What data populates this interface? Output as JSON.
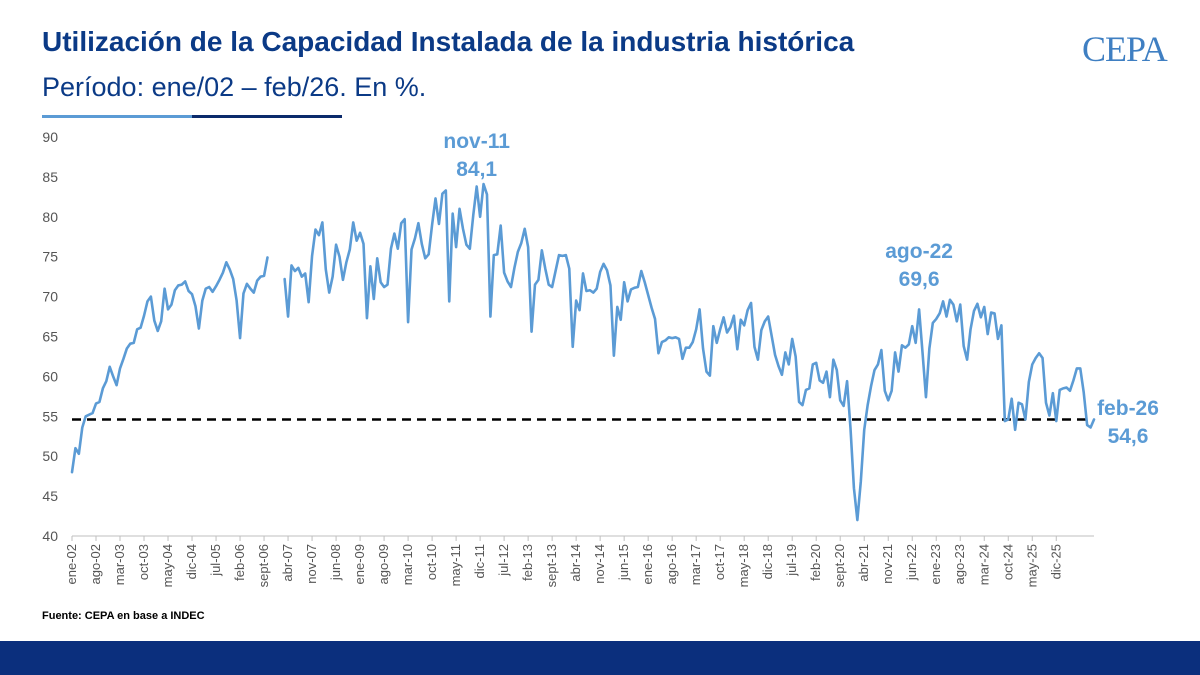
{
  "header": {
    "title": "Utilización de la Capacidad Instalada de la industria histórica",
    "subtitle": "Período: ene/02 – feb/26. En %.",
    "logo": "CEPA"
  },
  "footer": {
    "source": "Fuente: CEPA en base a INDEC"
  },
  "colors": {
    "line": "#5b9bd5",
    "title": "#0b3a86",
    "footer_bar": "#0b2f7d",
    "reference": "#000000"
  },
  "chart_data": {
    "type": "line",
    "x_start": "ene-02",
    "x_end": "feb-26",
    "frequency": "monthly",
    "ylim": [
      40,
      90
    ],
    "yticks": [
      40,
      45,
      50,
      55,
      60,
      65,
      70,
      75,
      80,
      85,
      90
    ],
    "xtick_labels": [
      "ene-02",
      "ago-02",
      "mar-03",
      "oct-03",
      "may-04",
      "dic-04",
      "jul-05",
      "feb-06",
      "sept-06",
      "abr-07",
      "nov-07",
      "jun-08",
      "ene-09",
      "ago-09",
      "mar-10",
      "oct-10",
      "may-11",
      "dic-11",
      "jul-12",
      "feb-13",
      "sept-13",
      "abr-14",
      "nov-14",
      "jun-15",
      "ene-16",
      "ago-16",
      "mar-17",
      "oct-17",
      "may-18",
      "dic-18",
      "jul-19",
      "feb-20",
      "sept-20",
      "abr-21",
      "nov-21",
      "jun-22",
      "ene-23",
      "ago-23",
      "mar-24",
      "oct-24",
      "may-25",
      "dic-25"
    ],
    "grid": false,
    "legend": "none",
    "reference_line": {
      "value": 54.6,
      "style": "dashed"
    },
    "annotations": [
      {
        "x": "nov-11",
        "label": "nov-11",
        "value": "84,1"
      },
      {
        "x": "ago-22",
        "label": "ago-22",
        "value": "69,6"
      },
      {
        "x": "feb-26",
        "label": "feb-26",
        "value": "54,6"
      }
    ],
    "series": [
      {
        "values": [
          48,
          51,
          50.3,
          53.6,
          55,
          55.2,
          55.4,
          56.6,
          56.8,
          58.5,
          59.4,
          61.2,
          60,
          58.9,
          61,
          62.2,
          63.5,
          64.1,
          64.2,
          65.9,
          66.1,
          67.6,
          69.4,
          70,
          67,
          65.7,
          66.9,
          71,
          68.4,
          69,
          70.8,
          71.4,
          71.5,
          71.9,
          70.7,
          70.3,
          68.8,
          66,
          69.5,
          71,
          71.2,
          70.6,
          71.3,
          72.1,
          73,
          74.3,
          73.4,
          72.2,
          69.5,
          64.8,
          70.4,
          71.6,
          71,
          70.5,
          72,
          72.5,
          72.6,
          74.9,
          null,
          null,
          null,
          null,
          72.2,
          67.5,
          73.9,
          73.2,
          73.6,
          72.5,
          72.9,
          69.3,
          75.1,
          78.4,
          77.7,
          79.3,
          73.4,
          70.5,
          72.5,
          76.5,
          75,
          72.1,
          74.3,
          75.9,
          79.3,
          77,
          78,
          76.6,
          67.3,
          73.8,
          69.7,
          74.8,
          71.8,
          71.2,
          71.5,
          76,
          77.9,
          76,
          79.2,
          79.7,
          66.8,
          75.9,
          77.3,
          79.2,
          76.6,
          74.8,
          75.3,
          79,
          82.3,
          79.1,
          82.9,
          83.3,
          69.4,
          80.4,
          76.2,
          81,
          78.5,
          76.5,
          76,
          80.2,
          83.8,
          80,
          84.1,
          82.8,
          67.5,
          75.2,
          75.3,
          78.9,
          73,
          71.9,
          71.2,
          73.6,
          75.6,
          76.7,
          78.5,
          76.2,
          65.6,
          71.5,
          72.1,
          75.8,
          73.5,
          71.5,
          71.2,
          73.2,
          75.2,
          75.1,
          75.2,
          73.5,
          63.7,
          69.5,
          68.3,
          72.9,
          70.7,
          70.8,
          70.5,
          71,
          73.1,
          74.1,
          73.3,
          71.4,
          62.6,
          68.7,
          67.1,
          71.8,
          69.4,
          70.9,
          71.1,
          71.2,
          73.2,
          71.8,
          70.2,
          68.6,
          67.2,
          62.9,
          64.3,
          64.5,
          64.9,
          64.8,
          64.9,
          64.7,
          62.2,
          63.6,
          63.6,
          64.3,
          65.9,
          68.4,
          63.5,
          60.6,
          60.1,
          66.3,
          64.2,
          65.9,
          67.4,
          65.5,
          66.2,
          67.6,
          63.4,
          67.1,
          66.4,
          68.3,
          69.2,
          63.7,
          62.1,
          65.8,
          66.9,
          67.5,
          65.1,
          62.7,
          61.3,
          60.2,
          63,
          61.5,
          64.7,
          62.5,
          56.8,
          56.4,
          58.3,
          58.5,
          61.5,
          61.7,
          59.5,
          59.2,
          60.6,
          57.4,
          62.1,
          60.8,
          57,
          56.3,
          59.4,
          53.5,
          46,
          42,
          46.8,
          53.3,
          56.4,
          58.8,
          60.8,
          61.5,
          63.3,
          58.2,
          57,
          58.2,
          63,
          60.6,
          63.9,
          63.6,
          64,
          66.3,
          64.2,
          68.4,
          63,
          57.4,
          63.5,
          66.7,
          67.2,
          67.9,
          69.4,
          67.5,
          69.6,
          69,
          66.9,
          69,
          63.8,
          62.1,
          65.9,
          68.2,
          69.1,
          67.4,
          68.7,
          65.3,
          68,
          67.9,
          64.7,
          66.4,
          54.4,
          54.6,
          57.2,
          53.3,
          56.7,
          56.5,
          54.6,
          59.3,
          61.5,
          62.3,
          62.9,
          62.3,
          56.7,
          55.1,
          57.9,
          54.4,
          58.3,
          58.5,
          58.6,
          58.2,
          59.5,
          61,
          61,
          58,
          53.9,
          53.6,
          54.6
        ]
      }
    ]
  }
}
